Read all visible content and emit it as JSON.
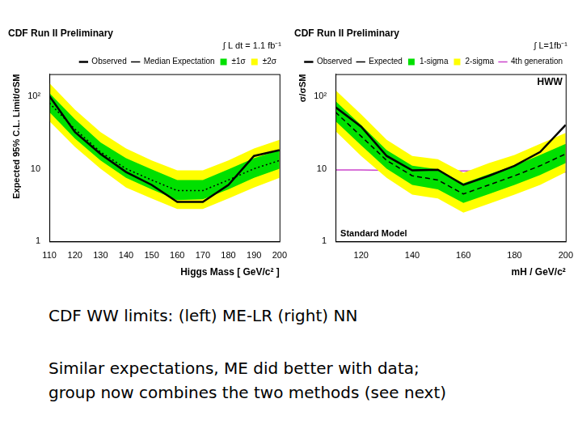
{
  "chart_data": [
    {
      "type": "line",
      "title": "CDF Run II Preliminary",
      "subtitle": "∫ L dt = 1.1 fb⁻¹",
      "x_label": "Higgs Mass [ GeV/c² ]",
      "y_label": "Expected 95% C.L. Limit/σSM",
      "x": [
        110,
        120,
        130,
        140,
        150,
        160,
        170,
        180,
        190,
        200
      ],
      "xlim": [
        110,
        200
      ],
      "xticks": [
        110,
        120,
        130,
        140,
        150,
        160,
        170,
        180,
        190,
        200
      ],
      "ylim": [
        1,
        200
      ],
      "yticks": [
        1,
        10,
        {
          "value": 100,
          "label": "10²"
        }
      ],
      "log": "y",
      "grid": false,
      "legend": "top-right",
      "series": [
        {
          "name": "Observed",
          "color": "#000000",
          "line_style": "solid",
          "values": [
            100,
            32,
            16,
            9,
            6,
            3.5,
            3.5,
            6,
            15,
            18
          ]
        },
        {
          "name": "Median Expectation",
          "color": "#000000",
          "line_style": "dotted",
          "values": [
            80,
            35,
            17,
            10,
            7,
            5,
            5,
            7,
            10,
            13
          ]
        },
        {
          "name": "±1σ",
          "type": "band",
          "color": "#00e000",
          "low": [
            60,
            26,
            13,
            7.5,
            5.2,
            3.7,
            3.8,
            5.2,
            7.5,
            10
          ],
          "high": [
            110,
            48,
            23,
            14,
            9.8,
            7,
            7,
            9.8,
            14,
            18
          ]
        },
        {
          "name": "±2σ",
          "type": "band",
          "color": "#ffff00",
          "low": [
            45,
            20,
            10,
            5.5,
            3.9,
            2.8,
            2.8,
            3.9,
            5.5,
            7.5
          ],
          "high": [
            150,
            65,
            32,
            19,
            13,
            9.5,
            9.5,
            13,
            19,
            25
          ]
        }
      ]
    },
    {
      "type": "line",
      "title": "CDF Run II Preliminary",
      "subtitle": "∫ L=1fb⁻¹",
      "annotations": [
        "HWW",
        "Standard Model"
      ],
      "x_label": "mH / GeV/c²",
      "y_label": "σ/σSM",
      "x": [
        110,
        120,
        130,
        140,
        150,
        160,
        170,
        180,
        190,
        200
      ],
      "xlim": [
        110,
        200
      ],
      "xticks": [
        120,
        140,
        160,
        180,
        200
      ],
      "ylim": [
        1,
        200
      ],
      "yticks": [
        1,
        10,
        {
          "value": 100,
          "label": "10²"
        }
      ],
      "log": "y",
      "grid": false,
      "legend": "top-right",
      "series": [
        {
          "name": "Observed",
          "color": "#000000",
          "line_style": "solid",
          "values": [
            70,
            38,
            15,
            9.5,
            9.7,
            6,
            8,
            11,
            17,
            40
          ]
        },
        {
          "name": "Expected",
          "color": "#000000",
          "line_style": "dashed",
          "values": [
            60,
            28,
            13,
            8,
            7,
            4.5,
            6,
            8,
            11,
            16
          ]
        },
        {
          "name": "1-sigma",
          "type": "band",
          "color": "#00e000",
          "low": [
            45,
            21,
            10,
            6,
            5.2,
            3.4,
            4.5,
            6,
            8.2,
            12
          ],
          "high": [
            85,
            40,
            18,
            11,
            9.8,
            6.3,
            8.4,
            11,
            15.5,
            22
          ]
        },
        {
          "name": "2-sigma",
          "type": "band",
          "color": "#ffff00",
          "low": [
            33,
            15,
            7.5,
            4.4,
            3.9,
            2.5,
            3.3,
            4.4,
            6,
            9
          ],
          "high": [
            120,
            56,
            25,
            15,
            13.5,
            8.8,
            12,
            15.5,
            22,
            31
          ]
        },
        {
          "name": "4th generation",
          "color": "#cc44cc",
          "line_style": "solid",
          "values": [
            9.6,
            9.6,
            9.5,
            9.5,
            9.4,
            9.3,
            9.3,
            9.2,
            9.1,
            9.0
          ]
        }
      ]
    }
  ],
  "text": {
    "caption": "CDF WW limits: (left) ME-LR (right) NN",
    "lines": [
      "Similar expectations, ME did better with data;",
      "group now combines the two methods (see next)"
    ]
  }
}
